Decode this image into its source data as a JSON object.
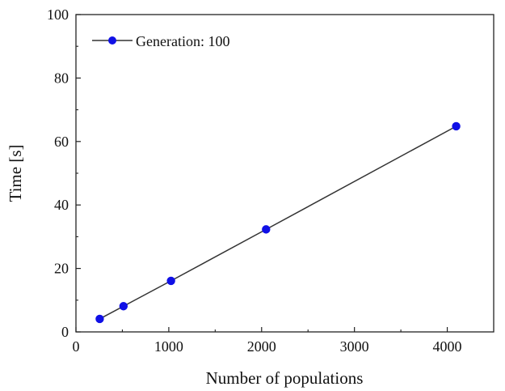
{
  "chart_data": {
    "type": "line",
    "title": "",
    "xlabel": "Number of populations",
    "ylabel": "Time [s]",
    "xlim": [
      0,
      4500
    ],
    "ylim": [
      0,
      100
    ],
    "x_ticks": [
      0,
      1000,
      2000,
      3000,
      4000
    ],
    "x_tick_labels": [
      "0",
      "1000",
      "2000",
      "3000",
      "4000"
    ],
    "y_ticks": [
      0,
      20,
      40,
      60,
      80,
      100
    ],
    "y_tick_labels": [
      "0",
      "20",
      "40",
      "60",
      "80",
      "100"
    ],
    "grid": false,
    "legend_position": "top-left",
    "series": [
      {
        "name": "Generation: 100",
        "line_color": "#333333",
        "marker_color": "#1010e6",
        "x": [
          256,
          512,
          1024,
          2048,
          4096
        ],
        "y": [
          4.1,
          8.1,
          16.1,
          32.3,
          64.8
        ]
      }
    ]
  }
}
